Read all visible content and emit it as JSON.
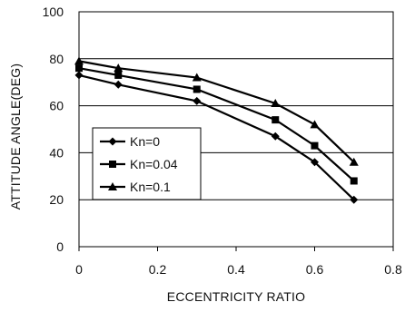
{
  "chart_data": {
    "type": "line",
    "title": "",
    "xlabel": "ECCENTRICITY RATIO",
    "ylabel": "ATTITUDE ANGLE(DEG)",
    "xlim": [
      0,
      0.8
    ],
    "ylim": [
      0,
      100
    ],
    "xticks": [
      "0",
      "0.2",
      "0.4",
      "0.6",
      "0.8"
    ],
    "yticks": [
      "0",
      "20",
      "40",
      "60",
      "80",
      "100"
    ],
    "grid": "horizontal",
    "legend_position": "middle-left",
    "x": [
      0,
      0.1,
      0.3,
      0.5,
      0.6,
      0.7
    ],
    "series": [
      {
        "name": "Kn=0",
        "marker": "diamond",
        "values": [
          73,
          69,
          62,
          47,
          36,
          20
        ]
      },
      {
        "name": "Kn=0.04",
        "marker": "square",
        "values": [
          76,
          73,
          67,
          54,
          43,
          28
        ]
      },
      {
        "name": "Kn=0.1",
        "marker": "triangle",
        "values": [
          79,
          76,
          72,
          61,
          52,
          36
        ]
      }
    ],
    "colors": {
      "line": "#000000",
      "grid": "#000000",
      "background": "#ffffff"
    }
  }
}
